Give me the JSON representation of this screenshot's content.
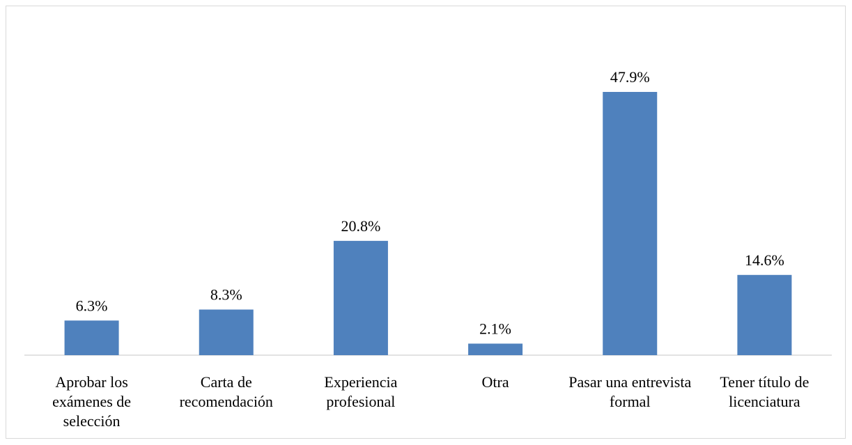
{
  "chart_data": {
    "type": "bar",
    "categories": [
      "Aprobar los exámenes de selección",
      "Carta de recomendación",
      "Experiencia profesional",
      "Otra",
      "Pasar una entrevista formal",
      "Tener título de licenciatura"
    ],
    "values": [
      6.3,
      8.3,
      20.8,
      2.1,
      47.9,
      14.6
    ],
    "value_labels": [
      "6.3%",
      "8.3%",
      "20.8%",
      "2.1%",
      "47.9%",
      "14.6%"
    ],
    "color": "#4f81bd"
  }
}
